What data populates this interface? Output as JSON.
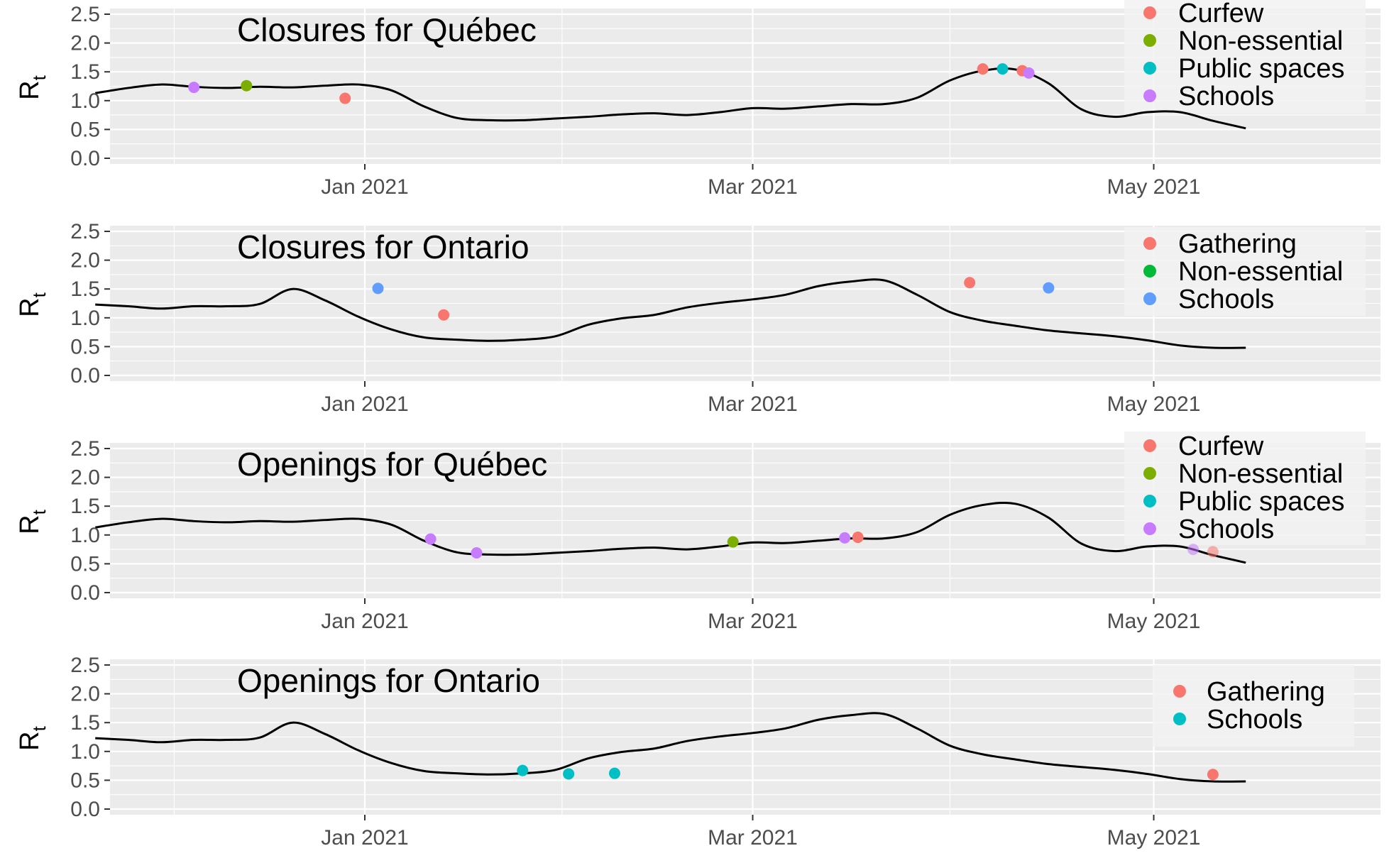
{
  "chart_data": [
    {
      "type": "line",
      "title": "Closures for Québec",
      "ylabel": "R",
      "ylabel_subscript": "t",
      "ylim": [
        0,
        2.5
      ],
      "yticks": [
        "0.0",
        "0.5",
        "1.0",
        "1.5",
        "2.0",
        "2.5"
      ],
      "xticks": [
        "Jan 2021",
        "Mar 2021",
        "May 2021"
      ],
      "x_range_days": [
        -45,
        136
      ],
      "series": [
        {
          "name": "Rt",
          "x": [
            -41,
            -36,
            -31,
            -26,
            -21,
            -16,
            -11,
            -6,
            -1,
            4,
            9,
            14,
            19,
            24,
            29,
            34,
            39,
            44,
            49,
            54,
            59,
            64,
            69,
            74,
            79,
            84,
            89,
            94,
            99,
            104,
            109,
            114,
            119,
            124,
            129,
            134
          ],
          "y": [
            1.13,
            1.22,
            1.28,
            1.24,
            1.22,
            1.24,
            1.23,
            1.26,
            1.28,
            1.18,
            0.9,
            0.7,
            0.66,
            0.66,
            0.69,
            0.72,
            0.76,
            0.78,
            0.75,
            0.8,
            0.87,
            0.86,
            0.9,
            0.94,
            0.94,
            1.05,
            1.35,
            1.52,
            1.54,
            1.3,
            0.85,
            0.72,
            0.8,
            0.8,
            0.65,
            0.52
          ],
          "future_from": 120
        }
      ],
      "events": [
        {
          "label": "Schools",
          "x": -26,
          "y": 1.23
        },
        {
          "label": "Non-essential",
          "x": -18,
          "y": 1.26
        },
        {
          "label": "Curfew",
          "x": -3,
          "y": 1.04
        },
        {
          "label": "Curfew",
          "x": 94,
          "y": 1.55
        },
        {
          "label": "Public spaces",
          "x": 97,
          "y": 1.55
        },
        {
          "label": "Curfew",
          "x": 100,
          "y": 1.52
        },
        {
          "label": "Schools",
          "x": 101,
          "y": 1.48
        }
      ],
      "legend": [
        {
          "label": "Curfew",
          "color": "#F8766D"
        },
        {
          "label": "Non-essential",
          "color": "#7CAE00"
        },
        {
          "label": "Public spaces",
          "color": "#00BFC4"
        },
        {
          "label": "Schools",
          "color": "#C77CFF"
        }
      ],
      "legend_position": "top-right"
    },
    {
      "type": "line",
      "title": "Closures for Ontario",
      "ylabel": "R",
      "ylabel_subscript": "t",
      "ylim": [
        0,
        2.5
      ],
      "yticks": [
        "0.0",
        "0.5",
        "1.0",
        "1.5",
        "2.0",
        "2.5"
      ],
      "xticks": [
        "Jan 2021",
        "Mar 2021",
        "May 2021"
      ],
      "x_range_days": [
        -45,
        136
      ],
      "series": [
        {
          "name": "Rt",
          "x": [
            -41,
            -36,
            -31,
            -26,
            -21,
            -16,
            -11,
            -6,
            -1,
            4,
            9,
            14,
            19,
            24,
            29,
            34,
            39,
            44,
            49,
            54,
            59,
            64,
            69,
            74,
            79,
            84,
            89,
            94,
            99,
            104,
            109,
            114,
            119,
            124,
            129,
            134
          ],
          "y": [
            1.23,
            1.2,
            1.16,
            1.2,
            1.2,
            1.24,
            1.5,
            1.3,
            1.02,
            0.8,
            0.66,
            0.62,
            0.6,
            0.62,
            0.68,
            0.88,
            0.99,
            1.05,
            1.18,
            1.26,
            1.32,
            1.4,
            1.55,
            1.63,
            1.65,
            1.4,
            1.1,
            0.95,
            0.86,
            0.78,
            0.73,
            0.68,
            0.61,
            0.52,
            0.48,
            0.48
          ]
        }
      ],
      "events": [
        {
          "label": "Schools",
          "x": 2,
          "y": 1.51
        },
        {
          "label": "Gathering",
          "x": 12,
          "y": 1.05
        },
        {
          "label": "Gathering",
          "x": 92,
          "y": 1.61
        },
        {
          "label": "Schools",
          "x": 104,
          "y": 1.52
        }
      ],
      "legend": [
        {
          "label": "Gathering",
          "color": "#F8766D"
        },
        {
          "label": "Non-essential",
          "color": "#00BA38"
        },
        {
          "label": "Schools",
          "color": "#619CFF"
        }
      ],
      "legend_position": "top-right"
    },
    {
      "type": "line",
      "title": "Openings for Québec",
      "ylabel": "R",
      "ylabel_subscript": "t",
      "ylim": [
        0,
        2.5
      ],
      "yticks": [
        "0.0",
        "0.5",
        "1.0",
        "1.5",
        "2.0",
        "2.5"
      ],
      "xticks": [
        "Jan 2021",
        "Mar 2021",
        "May 2021"
      ],
      "x_range_days": [
        -45,
        136
      ],
      "series": [
        {
          "name": "Rt",
          "x": [
            -41,
            -36,
            -31,
            -26,
            -21,
            -16,
            -11,
            -6,
            -1,
            4,
            9,
            14,
            19,
            24,
            29,
            34,
            39,
            44,
            49,
            54,
            59,
            64,
            69,
            74,
            79,
            84,
            89,
            94,
            99,
            104,
            109,
            114,
            119,
            124,
            129,
            134
          ],
          "y": [
            1.13,
            1.22,
            1.28,
            1.24,
            1.22,
            1.24,
            1.23,
            1.26,
            1.28,
            1.18,
            0.9,
            0.7,
            0.66,
            0.66,
            0.69,
            0.72,
            0.76,
            0.78,
            0.75,
            0.8,
            0.87,
            0.86,
            0.9,
            0.94,
            0.94,
            1.05,
            1.35,
            1.52,
            1.54,
            1.3,
            0.85,
            0.72,
            0.8,
            0.8,
            0.65,
            0.52
          ],
          "future_from": 120
        }
      ],
      "events": [
        {
          "label": "Schools",
          "x": 10,
          "y": 0.93
        },
        {
          "label": "Schools",
          "x": 17,
          "y": 0.69
        },
        {
          "label": "Non-essential",
          "x": 56,
          "y": 0.88
        },
        {
          "label": "Schools",
          "x": 73,
          "y": 0.95
        },
        {
          "label": "Curfew",
          "x": 75,
          "y": 0.96
        },
        {
          "label": "Schools",
          "x": 126,
          "y": 0.75
        },
        {
          "label": "Curfew",
          "x": 129,
          "y": 0.71
        }
      ],
      "legend": [
        {
          "label": "Curfew",
          "color": "#F8766D"
        },
        {
          "label": "Non-essential",
          "color": "#7CAE00"
        },
        {
          "label": "Public spaces",
          "color": "#00BFC4"
        },
        {
          "label": "Schools",
          "color": "#C77CFF"
        }
      ],
      "legend_position": "top-right"
    },
    {
      "type": "line",
      "title": "Openings for Ontario",
      "ylabel": "R",
      "ylabel_subscript": "t",
      "ylim": [
        0,
        2.5
      ],
      "yticks": [
        "0.0",
        "0.5",
        "1.0",
        "1.5",
        "2.0",
        "2.5"
      ],
      "xticks": [
        "Jan 2021",
        "Mar 2021",
        "May 2021"
      ],
      "x_range_days": [
        -45,
        136
      ],
      "series": [
        {
          "name": "Rt",
          "x": [
            -41,
            -36,
            -31,
            -26,
            -21,
            -16,
            -11,
            -6,
            -1,
            4,
            9,
            14,
            19,
            24,
            29,
            34,
            39,
            44,
            49,
            54,
            59,
            64,
            69,
            74,
            79,
            84,
            89,
            94,
            99,
            104,
            109,
            114,
            119,
            124,
            129,
            134
          ],
          "y": [
            1.23,
            1.2,
            1.16,
            1.2,
            1.2,
            1.24,
            1.5,
            1.3,
            1.02,
            0.8,
            0.66,
            0.62,
            0.6,
            0.62,
            0.68,
            0.88,
            0.99,
            1.05,
            1.18,
            1.26,
            1.32,
            1.4,
            1.55,
            1.63,
            1.65,
            1.4,
            1.1,
            0.95,
            0.86,
            0.78,
            0.73,
            0.68,
            0.61,
            0.52,
            0.48,
            0.48
          ]
        }
      ],
      "events": [
        {
          "label": "Schools",
          "x": 24,
          "y": 0.67
        },
        {
          "label": "Schools",
          "x": 31,
          "y": 0.61
        },
        {
          "label": "Schools",
          "x": 38,
          "y": 0.62
        },
        {
          "label": "Gathering",
          "x": 129,
          "y": 0.6
        }
      ],
      "legend": [
        {
          "label": "Gathering",
          "color": "#F8766D"
        },
        {
          "label": "Schools",
          "color": "#00BFC4"
        }
      ],
      "legend_position": "top-right"
    }
  ]
}
